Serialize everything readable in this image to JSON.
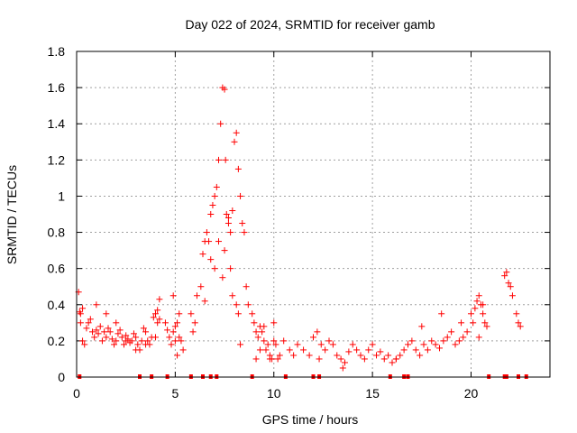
{
  "chart_data": {
    "type": "scatter",
    "title": "Day 022 of 2024, SRMTID for receiver gamb",
    "xlabel": "GPS time / hours",
    "ylabel": "SRMTID / TECUs",
    "xlim": [
      0,
      24
    ],
    "ylim": [
      0,
      1.8
    ],
    "xticks": [
      0,
      5,
      10,
      15,
      20
    ],
    "yticks": [
      0,
      0.2,
      0.4,
      0.6,
      0.8,
      1,
      1.2,
      1.4,
      1.6,
      1.8
    ],
    "ytick_labels": [
      "0",
      "0.2",
      "0.4",
      "0.6",
      "0.8",
      "1",
      "1.2",
      "1.4",
      "1.6",
      "1.8"
    ],
    "grid": true,
    "marker": "+",
    "series": [
      {
        "name": "SRMTID",
        "color": "#ff0000",
        "x": [
          0.1,
          0.15,
          0.2,
          0.3,
          0.4,
          0.5,
          0.6,
          0.7,
          0.8,
          0.9,
          1.0,
          1.1,
          1.2,
          1.3,
          1.4,
          1.5,
          1.6,
          1.7,
          1.8,
          1.9,
          2.0,
          2.1,
          2.2,
          2.3,
          2.4,
          2.5,
          2.6,
          2.7,
          2.8,
          2.9,
          3.0,
          3.1,
          3.2,
          3.3,
          3.4,
          3.5,
          3.6,
          3.7,
          3.8,
          3.9,
          4.0,
          4.1,
          4.2,
          4.5,
          4.6,
          4.7,
          4.8,
          4.9,
          5.0,
          5.1,
          5.2,
          5.3,
          5.4,
          5.8,
          5.9,
          6.0,
          6.1,
          6.3,
          6.4,
          6.5,
          6.6,
          6.7,
          6.8,
          6.9,
          7.0,
          7.1,
          7.2,
          7.3,
          7.4,
          7.5,
          7.55,
          7.6,
          7.7,
          7.8,
          7.9,
          8.0,
          8.1,
          8.2,
          8.3,
          8.4,
          8.5,
          8.6,
          8.7,
          8.9,
          9.0,
          9.1,
          9.2,
          9.3,
          9.4,
          9.5,
          9.6,
          9.7,
          9.8,
          9.9,
          10.0,
          10.1,
          10.2,
          10.3,
          10.5,
          10.8,
          11.0,
          11.2,
          11.5,
          11.8,
          12.0,
          12.2,
          12.4,
          12.6,
          12.8,
          13.0,
          13.2,
          13.4,
          13.6,
          13.8,
          14.0,
          14.2,
          14.4,
          14.6,
          14.8,
          15.0,
          15.2,
          15.4,
          15.6,
          15.8,
          16.0,
          16.2,
          16.4,
          16.6,
          16.8,
          17.0,
          17.2,
          17.4,
          17.6,
          17.8,
          18.0,
          18.2,
          18.4,
          18.6,
          18.8,
          19.0,
          19.2,
          19.4,
          19.6,
          19.8,
          20.0,
          20.1,
          20.2,
          20.3,
          20.4,
          20.5,
          20.6,
          20.7,
          20.8,
          21.7,
          21.8,
          21.9,
          22.0,
          22.1,
          22.3,
          22.4,
          22.5,
          0.2,
          0.3,
          1.0,
          1.5,
          2.0,
          2.5,
          3.0,
          3.5,
          4.0,
          4.1,
          4.2,
          4.9,
          5.0,
          5.1,
          5.2,
          6.5,
          6.8,
          7.0,
          7.2,
          7.4,
          7.5,
          7.7,
          7.8,
          7.9,
          8.1,
          8.2,
          8.3,
          9.1,
          9.3,
          9.5,
          9.8,
          10.0,
          12.3,
          13.5,
          16.2,
          17.5,
          18.5,
          19.5,
          20.4,
          20.6
        ],
        "y": [
          0.47,
          0.36,
          0.35,
          0.2,
          0.18,
          0.27,
          0.3,
          0.32,
          0.25,
          0.22,
          0.26,
          0.24,
          0.28,
          0.2,
          0.25,
          0.22,
          0.27,
          0.25,
          0.21,
          0.18,
          0.2,
          0.24,
          0.26,
          0.22,
          0.18,
          0.23,
          0.21,
          0.19,
          0.2,
          0.24,
          0.22,
          0.18,
          0.15,
          0.2,
          0.27,
          0.25,
          0.2,
          0.18,
          0.22,
          0.33,
          0.35,
          0.37,
          0.43,
          0.3,
          0.26,
          0.22,
          0.18,
          0.25,
          0.28,
          0.3,
          0.22,
          0.2,
          0.15,
          0.35,
          0.25,
          0.3,
          0.45,
          0.5,
          0.68,
          0.75,
          0.8,
          0.75,
          0.9,
          0.95,
          1.0,
          1.05,
          1.2,
          1.4,
          1.6,
          1.59,
          1.2,
          0.9,
          0.85,
          0.8,
          0.92,
          1.3,
          1.35,
          1.15,
          1.0,
          0.85,
          0.8,
          0.5,
          0.4,
          0.35,
          0.3,
          0.25,
          0.22,
          0.28,
          0.25,
          0.2,
          0.15,
          0.18,
          0.12,
          0.1,
          0.2,
          0.18,
          0.1,
          0.12,
          0.2,
          0.15,
          0.12,
          0.18,
          0.15,
          0.12,
          0.22,
          0.25,
          0.18,
          0.15,
          0.2,
          0.18,
          0.12,
          0.1,
          0.08,
          0.14,
          0.18,
          0.15,
          0.12,
          0.1,
          0.15,
          0.18,
          0.12,
          0.14,
          0.1,
          0.12,
          0.08,
          0.1,
          0.12,
          0.15,
          0.18,
          0.2,
          0.15,
          0.12,
          0.18,
          0.15,
          0.2,
          0.18,
          0.16,
          0.2,
          0.22,
          0.25,
          0.18,
          0.2,
          0.22,
          0.25,
          0.35,
          0.3,
          0.38,
          0.42,
          0.45,
          0.4,
          0.35,
          0.3,
          0.28,
          0.56,
          0.58,
          0.52,
          0.5,
          0.45,
          0.35,
          0.3,
          0.28,
          0.3,
          0.38,
          0.4,
          0.35,
          0.3,
          0.2,
          0.15,
          0.18,
          0.22,
          0.3,
          0.32,
          0.45,
          0.2,
          0.12,
          0.35,
          0.42,
          0.65,
          0.6,
          0.75,
          0.55,
          0.7,
          0.88,
          0.6,
          0.45,
          0.4,
          0.35,
          0.18,
          0.1,
          0.15,
          0.28,
          0.1,
          0.3,
          0.1,
          0.05,
          0.1,
          0.28,
          0.35,
          0.3,
          0.22,
          0.4
        ],
        "zero_x": [
          0.15,
          3.2,
          3.8,
          4.6,
          5.8,
          6.4,
          6.8,
          7.1,
          8.9,
          10.6,
          12.0,
          12.3,
          15.9,
          16.6,
          16.8,
          20.9,
          21.7,
          21.8,
          22.4,
          22.8
        ]
      }
    ]
  }
}
